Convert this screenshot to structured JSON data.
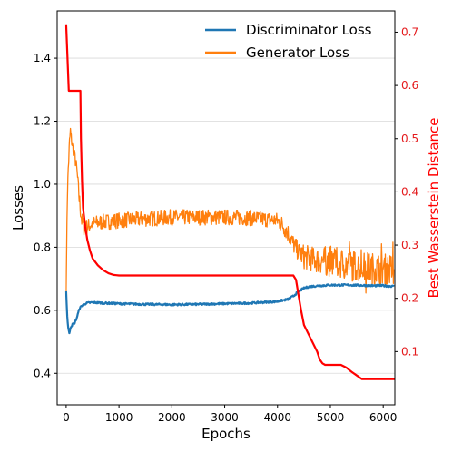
{
  "chart_data": {
    "type": "line",
    "xlabel": "Epochs",
    "ylabel_left": "Losses",
    "ylabel_right": "Best Wasserstein Distance",
    "xlim": [
      -170,
      6220
    ],
    "ylim_left": [
      0.3,
      1.55
    ],
    "ylim_right": [
      0.0,
      0.74
    ],
    "x_ticks": [
      0,
      1000,
      2000,
      3000,
      4000,
      5000,
      6000
    ],
    "y_ticks_left": [
      0.4,
      0.6,
      0.8,
      1.0,
      1.2,
      1.4
    ],
    "y_ticks_right": [
      0.1,
      0.2,
      0.3,
      0.4,
      0.5,
      0.6,
      0.7
    ],
    "grid": "horizontal (left axis)",
    "legend_position": "top-right",
    "series": [
      {
        "name": "Discriminator Loss",
        "axis": "left",
        "color": "#1f77b4",
        "x": [
          0,
          20,
          40,
          60,
          80,
          120,
          160,
          200,
          250,
          300,
          350,
          400,
          500,
          700,
          1000,
          1500,
          2000,
          2500,
          3000,
          3500,
          4000,
          4200,
          4300,
          4400,
          4500,
          4600,
          4800,
          5000,
          5200,
          5400,
          5600,
          5800,
          6000,
          6200
        ],
        "y": [
          0.66,
          0.58,
          0.545,
          0.525,
          0.545,
          0.555,
          0.56,
          0.575,
          0.605,
          0.615,
          0.62,
          0.623,
          0.625,
          0.623,
          0.621,
          0.619,
          0.618,
          0.619,
          0.621,
          0.623,
          0.628,
          0.635,
          0.645,
          0.66,
          0.67,
          0.675,
          0.678,
          0.68,
          0.68,
          0.68,
          0.679,
          0.678,
          0.678,
          0.676
        ]
      },
      {
        "name": "Generator Loss",
        "axis": "left",
        "color": "#ff7f0e",
        "x": [
          0,
          20,
          40,
          60,
          80,
          100,
          120,
          150,
          200,
          250,
          300,
          350,
          400,
          500,
          700,
          1000,
          1500,
          2000,
          2500,
          3000,
          3500,
          4000,
          4100,
          4200,
          4300,
          4400,
          4500,
          4700,
          5000,
          5300,
          5500,
          5700,
          6000,
          6200
        ],
        "y": [
          0.66,
          0.95,
          1.05,
          1.12,
          1.17,
          1.14,
          1.12,
          1.1,
          1.05,
          0.95,
          0.88,
          0.86,
          0.865,
          0.875,
          0.88,
          0.885,
          0.89,
          0.895,
          0.895,
          0.895,
          0.893,
          0.885,
          0.87,
          0.845,
          0.81,
          0.785,
          0.77,
          0.76,
          0.755,
          0.745,
          0.74,
          0.735,
          0.73,
          0.73
        ],
        "noise_amplitude": [
          0.0,
          0.02,
          0.03,
          0.03,
          0.02,
          0.02,
          0.02,
          0.02,
          0.02,
          0.03,
          0.03,
          0.03,
          0.025,
          0.025,
          0.025,
          0.025,
          0.025,
          0.025,
          0.025,
          0.025,
          0.025,
          0.025,
          0.03,
          0.03,
          0.03,
          0.03,
          0.04,
          0.04,
          0.05,
          0.05,
          0.05,
          0.05,
          0.05,
          0.05
        ]
      },
      {
        "name": "Best Wasserstein Distance",
        "axis": "right",
        "color": "#ff0000",
        "step": true,
        "x": [
          0,
          50,
          270,
          280,
          300,
          320,
          360,
          400,
          450,
          500,
          600,
          700,
          800,
          900,
          1000,
          4200,
          4300,
          4350,
          4400,
          4450,
          4500,
          4600,
          4700,
          4750,
          4800,
          4850,
          4900,
          5000,
          5100,
          5200,
          5300,
          5400,
          5500,
          5600,
          6220
        ],
        "y": [
          0.715,
          0.59,
          0.59,
          0.5,
          0.42,
          0.37,
          0.335,
          0.31,
          0.29,
          0.275,
          0.262,
          0.253,
          0.247,
          0.244,
          0.243,
          0.243,
          0.243,
          0.235,
          0.205,
          0.175,
          0.15,
          0.13,
          0.11,
          0.1,
          0.085,
          0.078,
          0.075,
          0.075,
          0.075,
          0.075,
          0.07,
          0.062,
          0.055,
          0.048,
          0.048
        ]
      }
    ]
  }
}
